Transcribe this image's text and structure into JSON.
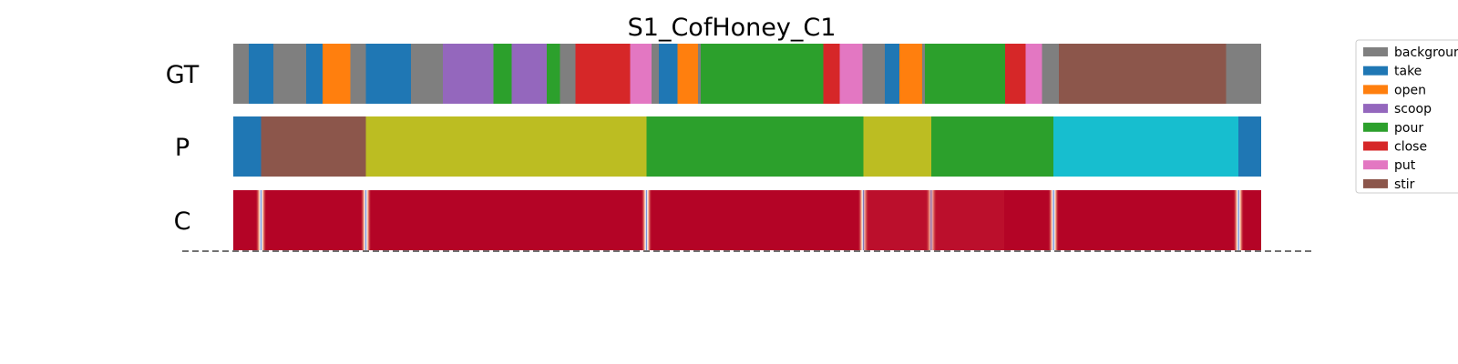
{
  "chart_data": {
    "type": "segmentation",
    "title": "S1_CofHoney_C1",
    "x_range": [
      0,
      1000
    ],
    "rows": [
      {
        "label": "GT",
        "kind": "segments",
        "segments": [
          {
            "start": 0,
            "end": 15,
            "label": "background"
          },
          {
            "start": 15,
            "end": 39,
            "label": "take"
          },
          {
            "start": 39,
            "end": 71,
            "label": "background"
          },
          {
            "start": 71,
            "end": 87,
            "label": "take"
          },
          {
            "start": 87,
            "end": 114,
            "label": "open"
          },
          {
            "start": 114,
            "end": 129,
            "label": "background"
          },
          {
            "start": 129,
            "end": 173,
            "label": "take"
          },
          {
            "start": 173,
            "end": 204,
            "label": "background"
          },
          {
            "start": 204,
            "end": 253,
            "label": "scoop"
          },
          {
            "start": 253,
            "end": 271,
            "label": "pour"
          },
          {
            "start": 271,
            "end": 305,
            "label": "scoop"
          },
          {
            "start": 305,
            "end": 318,
            "label": "pour"
          },
          {
            "start": 318,
            "end": 333,
            "label": "background"
          },
          {
            "start": 333,
            "end": 386,
            "label": "close"
          },
          {
            "start": 386,
            "end": 407,
            "label": "put"
          },
          {
            "start": 407,
            "end": 414,
            "label": "background"
          },
          {
            "start": 414,
            "end": 432,
            "label": "take"
          },
          {
            "start": 432,
            "end": 452,
            "label": "open"
          },
          {
            "start": 452,
            "end": 455,
            "label": "background"
          },
          {
            "start": 455,
            "end": 574,
            "label": "pour"
          },
          {
            "start": 574,
            "end": 590,
            "label": "close"
          },
          {
            "start": 590,
            "end": 612,
            "label": "put"
          },
          {
            "start": 612,
            "end": 634,
            "label": "background"
          },
          {
            "start": 634,
            "end": 648,
            "label": "take"
          },
          {
            "start": 648,
            "end": 670,
            "label": "open"
          },
          {
            "start": 670,
            "end": 673,
            "label": "background"
          },
          {
            "start": 673,
            "end": 751,
            "label": "pour"
          },
          {
            "start": 751,
            "end": 771,
            "label": "close"
          },
          {
            "start": 771,
            "end": 787,
            "label": "put"
          },
          {
            "start": 787,
            "end": 803,
            "label": "background"
          },
          {
            "start": 803,
            "end": 966,
            "label": "stir"
          },
          {
            "start": 966,
            "end": 1000,
            "label": "background"
          }
        ]
      },
      {
        "label": "P",
        "kind": "segments",
        "segments": [
          {
            "start": 0,
            "end": 27,
            "label": "take"
          },
          {
            "start": 27,
            "end": 129,
            "label": "stir"
          },
          {
            "start": 129,
            "end": 402,
            "label": "olive"
          },
          {
            "start": 402,
            "end": 613,
            "label": "pour"
          },
          {
            "start": 613,
            "end": 679,
            "label": "olive"
          },
          {
            "start": 679,
            "end": 798,
            "label": "pour"
          },
          {
            "start": 798,
            "end": 978,
            "label": "cyan"
          },
          {
            "start": 978,
            "end": 1000,
            "label": "take"
          }
        ]
      },
      {
        "label": "C",
        "kind": "confidence",
        "base_color": "#b40426",
        "dips": [
          27,
          129,
          402,
          613,
          679,
          798,
          978
        ]
      }
    ],
    "legend": {
      "placement": "right",
      "entries": [
        {
          "label": "background",
          "color": "#7f7f7f"
        },
        {
          "label": "take",
          "color": "#1f77b4"
        },
        {
          "label": "open",
          "color": "#ff7f0e"
        },
        {
          "label": "scoop",
          "color": "#9467bd"
        },
        {
          "label": "pour",
          "color": "#2ca02c"
        },
        {
          "label": "close",
          "color": "#d62728"
        },
        {
          "label": "put",
          "color": "#e377c2"
        },
        {
          "label": "stir",
          "color": "#8c564b"
        }
      ]
    },
    "extra_colors": {
      "olive": "#bcbd22",
      "cyan": "#17becf"
    }
  }
}
